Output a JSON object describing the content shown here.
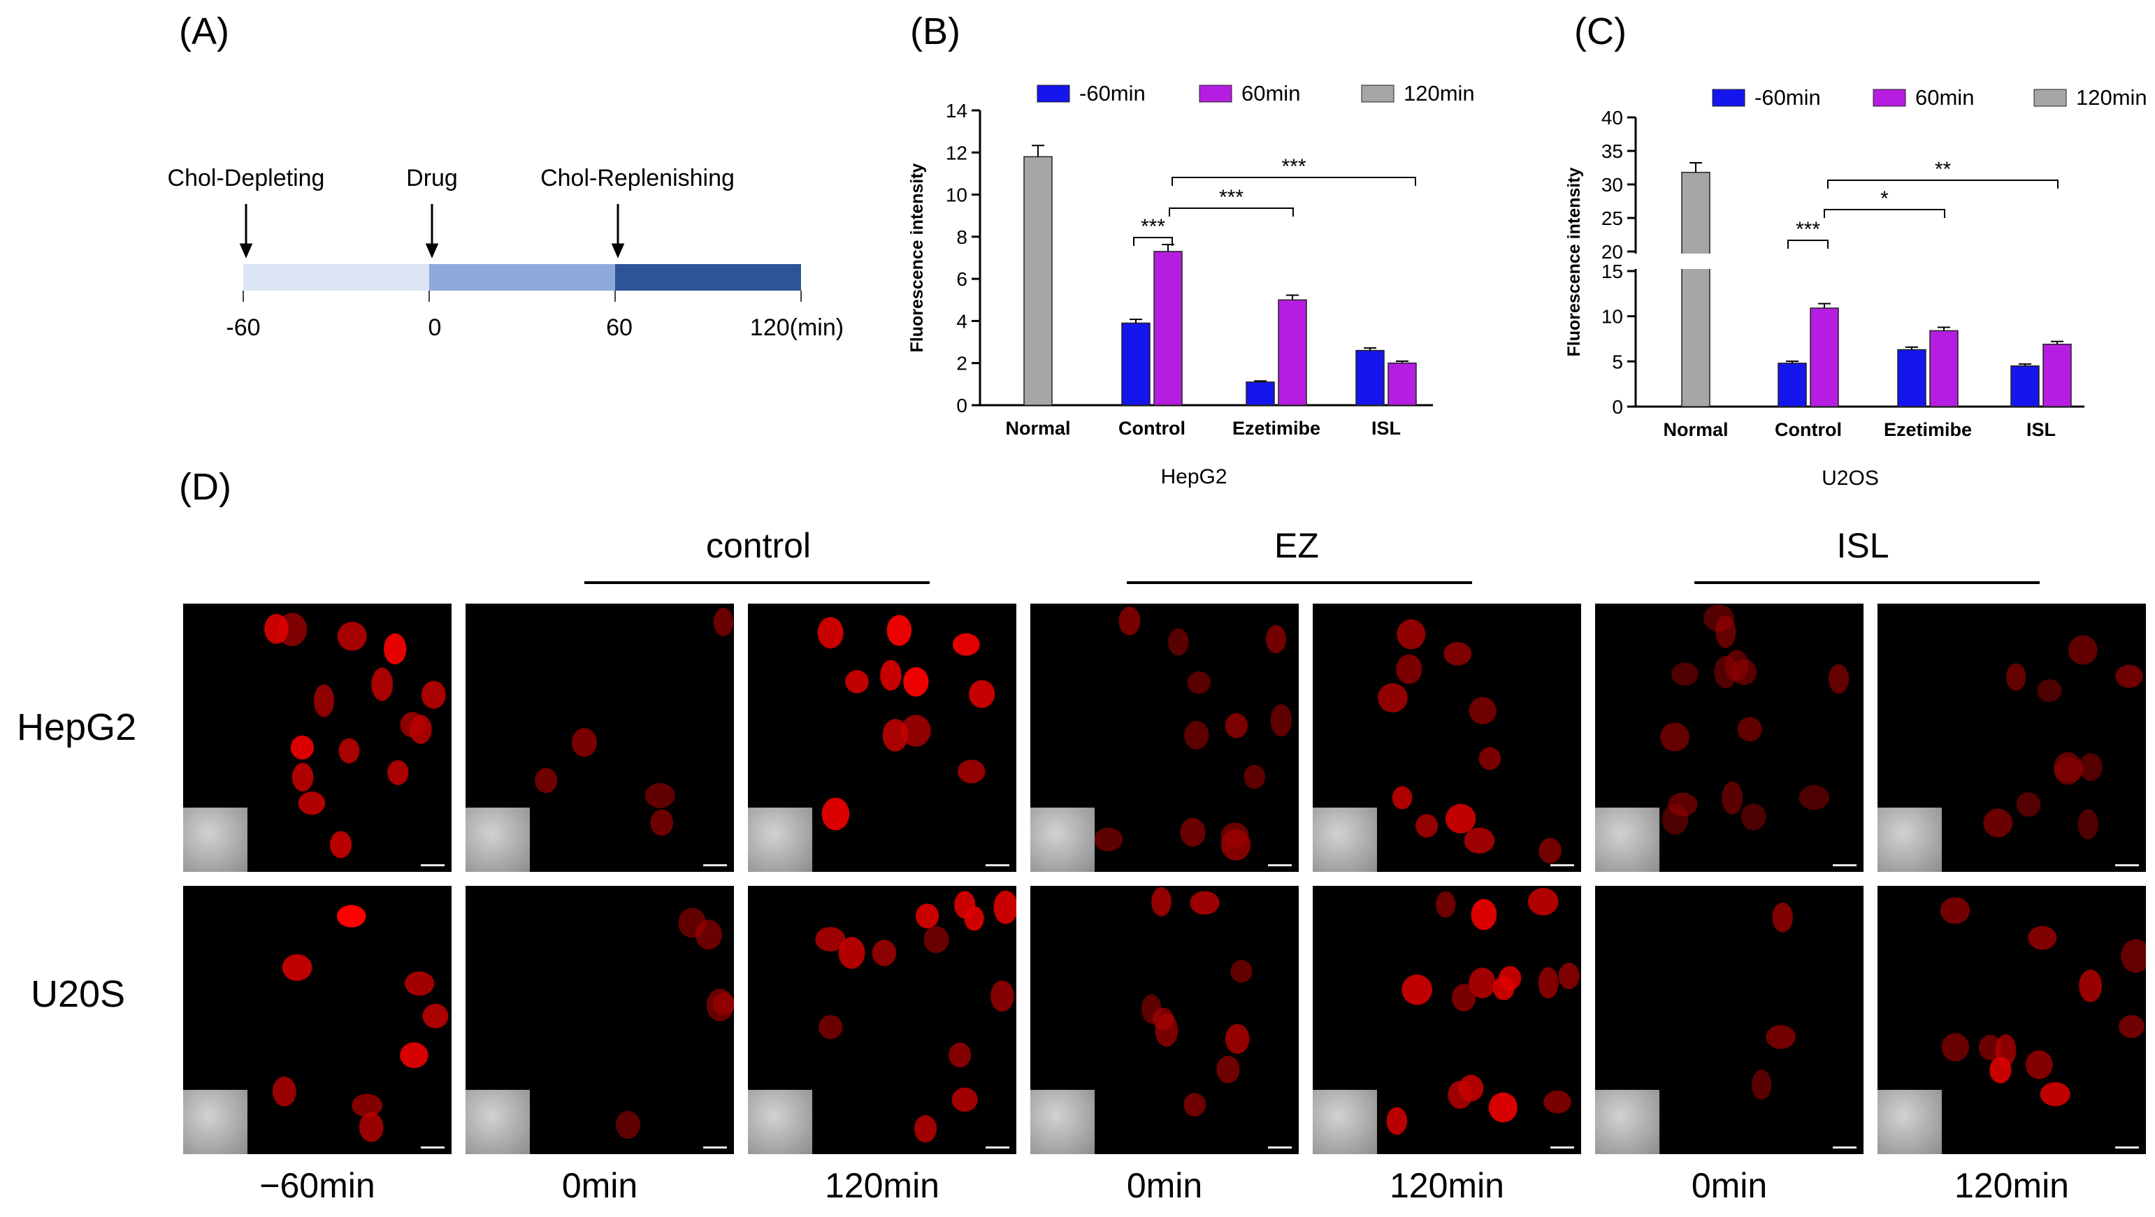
{
  "panels": {
    "a": "(A)",
    "b": "(B)",
    "c": "(C)",
    "d": "(D)"
  },
  "timeline": {
    "events": [
      "Chol-Depleting",
      "Drug",
      "Chol-Replenishing"
    ],
    "ticks": [
      "-60",
      "0",
      "60",
      "120(min)"
    ],
    "colors": [
      "#dbe5f3",
      "#8eaadc",
      "#2e5496"
    ]
  },
  "chart_data": [
    {
      "type": "bar",
      "title": "HepG2",
      "xlabel": "HepG2",
      "ylabel": "Fluorescence intensity",
      "categories": [
        "Normal",
        "Control",
        "Ezetimibe",
        "ISL"
      ],
      "series": [
        {
          "name": "-60min",
          "color": "#1515ee",
          "values": [
            null,
            3.9,
            1.1,
            2.6
          ]
        },
        {
          "name": "60min",
          "color": "#b51ee0",
          "values": [
            null,
            7.3,
            5.0,
            2.0
          ]
        },
        {
          "name": "120min",
          "color": "#a6a6a6",
          "values": [
            11.8,
            null,
            null,
            null
          ]
        }
      ],
      "ylim": [
        0,
        14
      ],
      "yticks": [
        "0",
        "2",
        "4",
        "6",
        "8",
        "10",
        "12",
        "14"
      ],
      "significance": [
        "***",
        "***",
        "***"
      ]
    },
    {
      "type": "bar",
      "title": "U2OS",
      "xlabel": "U2OS",
      "ylabel": "Fluorescence intensity",
      "categories": [
        "Normal",
        "Control",
        "Ezetimibe",
        "ISL"
      ],
      "series": [
        {
          "name": "-60min",
          "color": "#1515ee",
          "values": [
            null,
            4.8,
            6.3,
            4.5
          ]
        },
        {
          "name": "60min",
          "color": "#b51ee0",
          "values": [
            null,
            10.9,
            8.4,
            6.9
          ]
        },
        {
          "name": "120min",
          "color": "#a6a6a6",
          "values": [
            31.8,
            null,
            null,
            null
          ]
        }
      ],
      "ylim": [
        0,
        40
      ],
      "axis_break": [
        15,
        20
      ],
      "yticks_lower": [
        "0",
        "5",
        "10",
        "15"
      ],
      "yticks_upper": [
        "20",
        "25",
        "30",
        "35",
        "40"
      ],
      "significance": [
        "***",
        "*",
        "**"
      ]
    }
  ],
  "microscopy": {
    "groups": [
      "control",
      "EZ",
      "ISL"
    ],
    "rows": [
      "HepG2",
      "U20S"
    ],
    "times": [
      "−60min",
      "0min",
      "120min",
      "0min",
      "120min",
      "0min",
      "120min"
    ]
  }
}
